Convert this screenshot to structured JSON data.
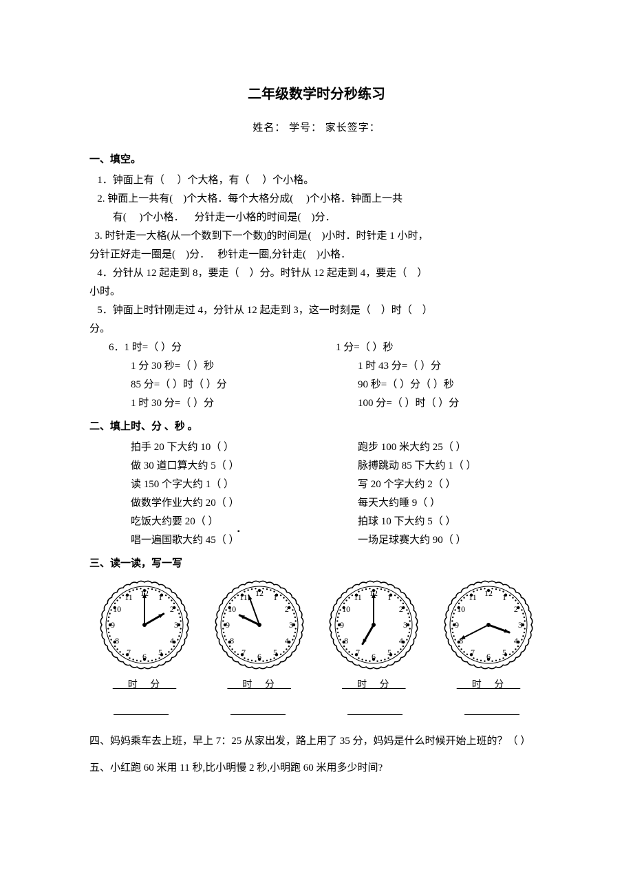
{
  "title": "二年级数学时分秒练习",
  "info": "姓名：            学号：            家长签字：",
  "sec1_head": "一、填空。",
  "sec1_items": [
    "   1．钟面上有（     ）个大格，有（     ）个小格。",
    "   2. 钟面上一共有(    )个大格．每个大格分成(     )个小格．钟面上一共",
    "         有(     )个小格．    分针走一小格的时间是(    )分．",
    "  3. 时针走一大格(从一个数到下一个数)的时间是(    )小时．时针走 1 小时，",
    "分针正好走一圈是(    )分．   秒针走一圈,分针走(    )小格．",
    "   4．分针从 12 起走到 8，要走（    ）分。时针从 12 起走到 4，要走（    ）",
    "小时。",
    "   5．钟面上时针刚走过 4，分针从 12 起走到 3，这一时刻是（    ）时（    ）",
    "分。"
  ],
  "sec1_6": "   6．",
  "sec1_6_rows": [
    {
      "l": "1 时=（    ）分",
      "r": "1 分=（    ）秒"
    },
    {
      "l": " 1 分 30 秒=（    ）秒",
      "r": "1 时 43 分=（     ）分"
    },
    {
      "l": " 85 分=（    ）时（    ）分",
      "r": "90 秒=（    ）分（    ）秒"
    },
    {
      "l": " 1 时 30 分=（    ）分",
      "r": "100 分=（    ）时（    ）分"
    }
  ],
  "sec2_head": "二、填上时、分 、秒 。",
  "sec2_rows": [
    {
      "l": "拍手 20 下大约 10（    ）",
      "r": "跑步 100 米大约 25（    ）"
    },
    {
      "l": "做 30 道口算大约 5（    ）",
      "r": "脉搏跳动 85 下大约 1（    ）"
    },
    {
      "l": "读 150 个字大约 1（    ）",
      "r": "写 20 个字大约 2（    ）"
    },
    {
      "l": "做数学作业大约 20（    ）",
      "r": "每天大约睡 9（    ）"
    },
    {
      "l": "吃饭大约要 20（    ）",
      "r": "拍球 10 下大约 5（    ）"
    },
    {
      "l": "唱一遍国歌大约 45（    ）",
      "r": "一场足球赛大约 90（    ）"
    }
  ],
  "sec3_head": "三、读一读，写一写",
  "clock_label": "时   分",
  "clocks": [
    {
      "hour_angle": 60,
      "minute_angle": 0,
      "hand_offset": 0
    },
    {
      "hour_angle": 296,
      "minute_angle": 340,
      "hand_offset": 0
    },
    {
      "hour_angle": 210,
      "minute_angle": 0,
      "hand_offset": 0
    },
    {
      "hour_angle": 110,
      "minute_angle": 243,
      "hand_offset": 0
    }
  ],
  "clock_style": {
    "size": 140,
    "radius": 62,
    "inner_radius": 56,
    "num_radius": 46,
    "tick_outer": 56,
    "tick_minor_inner": 52,
    "tick_major_inner": 48,
    "hour_len": 32,
    "minute_len": 46,
    "stroke": "#000000",
    "font_size": 12,
    "dot_min": 1.2,
    "dot_maj": 2.2,
    "scallop_count": 36
  },
  "sec4": "四、妈妈乘车去上班，早上 7：25 从家出发，路上用了 35 分，妈妈是什么时候开始上班的？（        ）",
  "sec5": "五、小红跑 60 米用 11 秒,比小明慢 2 秒,小明跑 60 米用多少时间?",
  "marker_dot": "▪"
}
